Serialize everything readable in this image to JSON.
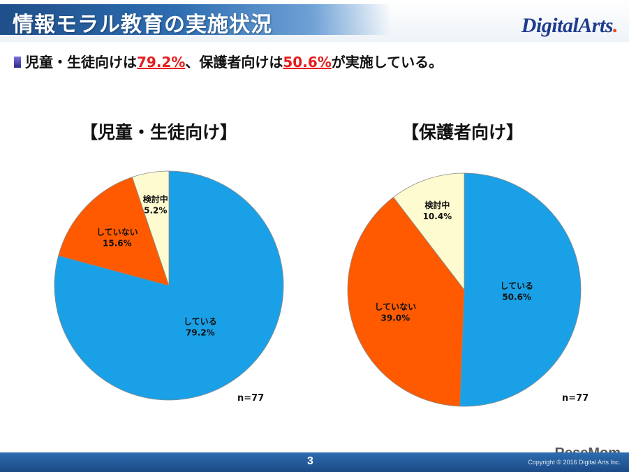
{
  "header": {
    "title": "情報モラル教育の実施状況",
    "logo_prefix": "D",
    "logo_rest": "igitalArts",
    "logo_mark": "."
  },
  "summary": {
    "part1": "児童・生徒向けは",
    "value1": "79.2%",
    "part2": "、保護者向けは",
    "value2": "50.6%",
    "part3": "が実施している。"
  },
  "colors": {
    "doing": "#1aa0e6",
    "not_doing": "#ff5a00",
    "considering": "#fefbd0",
    "highlight": "#e51e1e"
  },
  "chart_data": [
    {
      "type": "pie",
      "title": "【児童・生徒向け】",
      "note": "n=77",
      "start_angle_deg": 0,
      "direction": "clockwise",
      "slices": [
        {
          "label": "している",
          "value": 79.2,
          "value_text": "79.2%",
          "color": "#1aa0e6"
        },
        {
          "label": "していない",
          "value": 15.6,
          "value_text": "15.6%",
          "color": "#ff5a00"
        },
        {
          "label": "検討中",
          "value": 5.2,
          "value_text": "5.2%",
          "color": "#fefbd0"
        }
      ]
    },
    {
      "type": "pie",
      "title": "【保護者向け】",
      "note": "n=77",
      "start_angle_deg": 0,
      "direction": "clockwise",
      "slices": [
        {
          "label": "している",
          "value": 50.6,
          "value_text": "50.6%",
          "color": "#1aa0e6"
        },
        {
          "label": "していない",
          "value": 39.0,
          "value_text": "39.0%",
          "color": "#ff5a00"
        },
        {
          "label": "検討中",
          "value": 10.4,
          "value_text": "10.4%",
          "color": "#fefbd0"
        }
      ]
    }
  ],
  "footer": {
    "page_number": "3",
    "copyright": "Copyright © 2016 Digital Arts Inc."
  },
  "watermark": "ReseMom"
}
